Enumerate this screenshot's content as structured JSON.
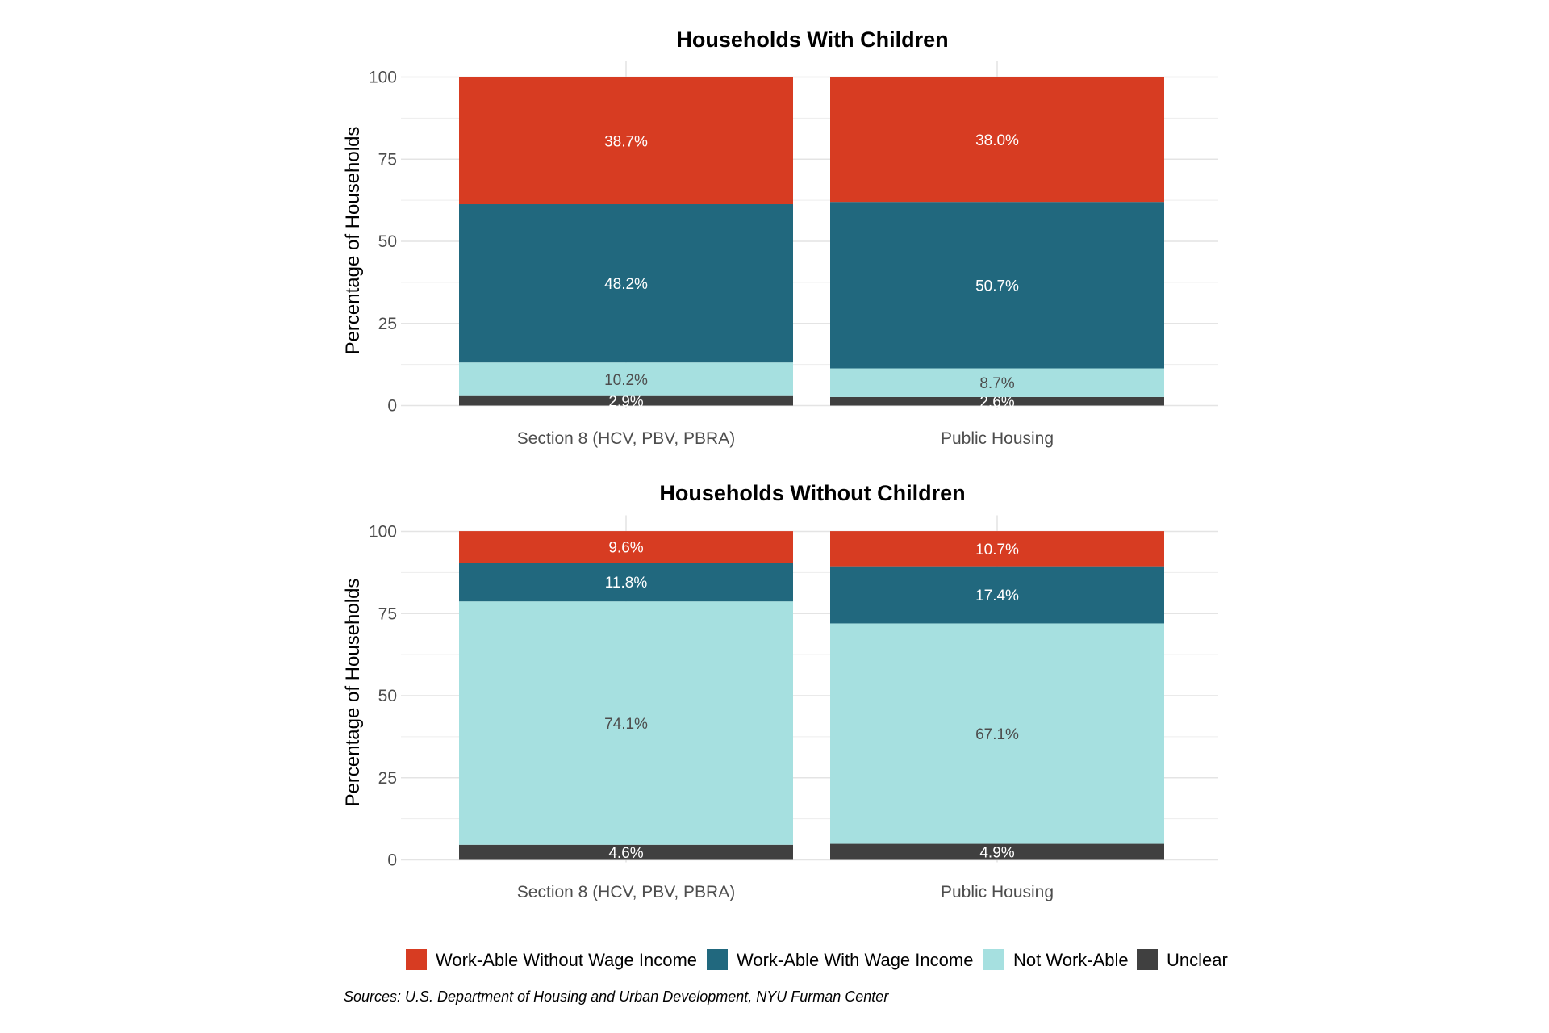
{
  "chart_data": [
    {
      "type": "bar",
      "stacked": true,
      "title": "Households With Children",
      "ylabel": "Percentage of Households",
      "xlabel": "",
      "ylim": [
        0,
        100
      ],
      "yticks": [
        "0",
        "25",
        "50",
        "75",
        "100"
      ],
      "categories": [
        "Section 8 (HCV, PBV, PBRA)",
        "Public Housing"
      ],
      "series": [
        {
          "name": "Unclear",
          "values": [
            2.9,
            2.6
          ],
          "labels": [
            "2.9%",
            "2.6%"
          ]
        },
        {
          "name": "Not Work-Able",
          "values": [
            10.2,
            8.7
          ],
          "labels": [
            "10.2%",
            "8.7%"
          ]
        },
        {
          "name": "Work-Able With Wage Income",
          "values": [
            48.2,
            50.7
          ],
          "labels": [
            "48.2%",
            "50.7%"
          ]
        },
        {
          "name": "Work-Able Without Wage Income",
          "values": [
            38.7,
            38.0
          ],
          "labels": [
            "38.7%",
            "38.0%"
          ]
        }
      ],
      "grid": true
    },
    {
      "type": "bar",
      "stacked": true,
      "title": "Households Without Children",
      "ylabel": "Percentage of Households",
      "xlabel": "",
      "ylim": [
        0,
        100
      ],
      "yticks": [
        "0",
        "25",
        "50",
        "75",
        "100"
      ],
      "categories": [
        "Section 8 (HCV, PBV, PBRA)",
        "Public Housing"
      ],
      "series": [
        {
          "name": "Unclear",
          "values": [
            4.6,
            4.9
          ],
          "labels": [
            "4.6%",
            "4.9%"
          ]
        },
        {
          "name": "Not Work-Able",
          "values": [
            74.1,
            67.1
          ],
          "labels": [
            "74.1%",
            "67.1%"
          ]
        },
        {
          "name": "Work-Able With Wage Income",
          "values": [
            11.8,
            17.4
          ],
          "labels": [
            "11.8%",
            "17.4%"
          ]
        },
        {
          "name": "Work-Able Without Wage Income",
          "values": [
            9.6,
            10.7
          ],
          "labels": [
            "9.6%",
            "10.7%"
          ]
        }
      ],
      "grid": true
    }
  ],
  "series_colors": {
    "Work-Able Without Wage Income": "#d73c22",
    "Work-Able With Wage Income": "#21687e",
    "Not Work-Able": "#a6e0e0",
    "Unclear": "#404040"
  },
  "label_colors": {
    "Work-Able Without Wage Income": "#ffffff",
    "Work-Able With Wage Income": "#ffffff",
    "Not Work-Able": "#4d4d4d",
    "Unclear": "#ffffff"
  },
  "legend": {
    "position": "bottom",
    "items": [
      "Work-Able Without Wage Income",
      "Work-Able With Wage Income",
      "Not Work-Able",
      "Unclear"
    ]
  },
  "source": "Sources: U.S. Department of Housing and Urban Development, NYU Furman Center"
}
